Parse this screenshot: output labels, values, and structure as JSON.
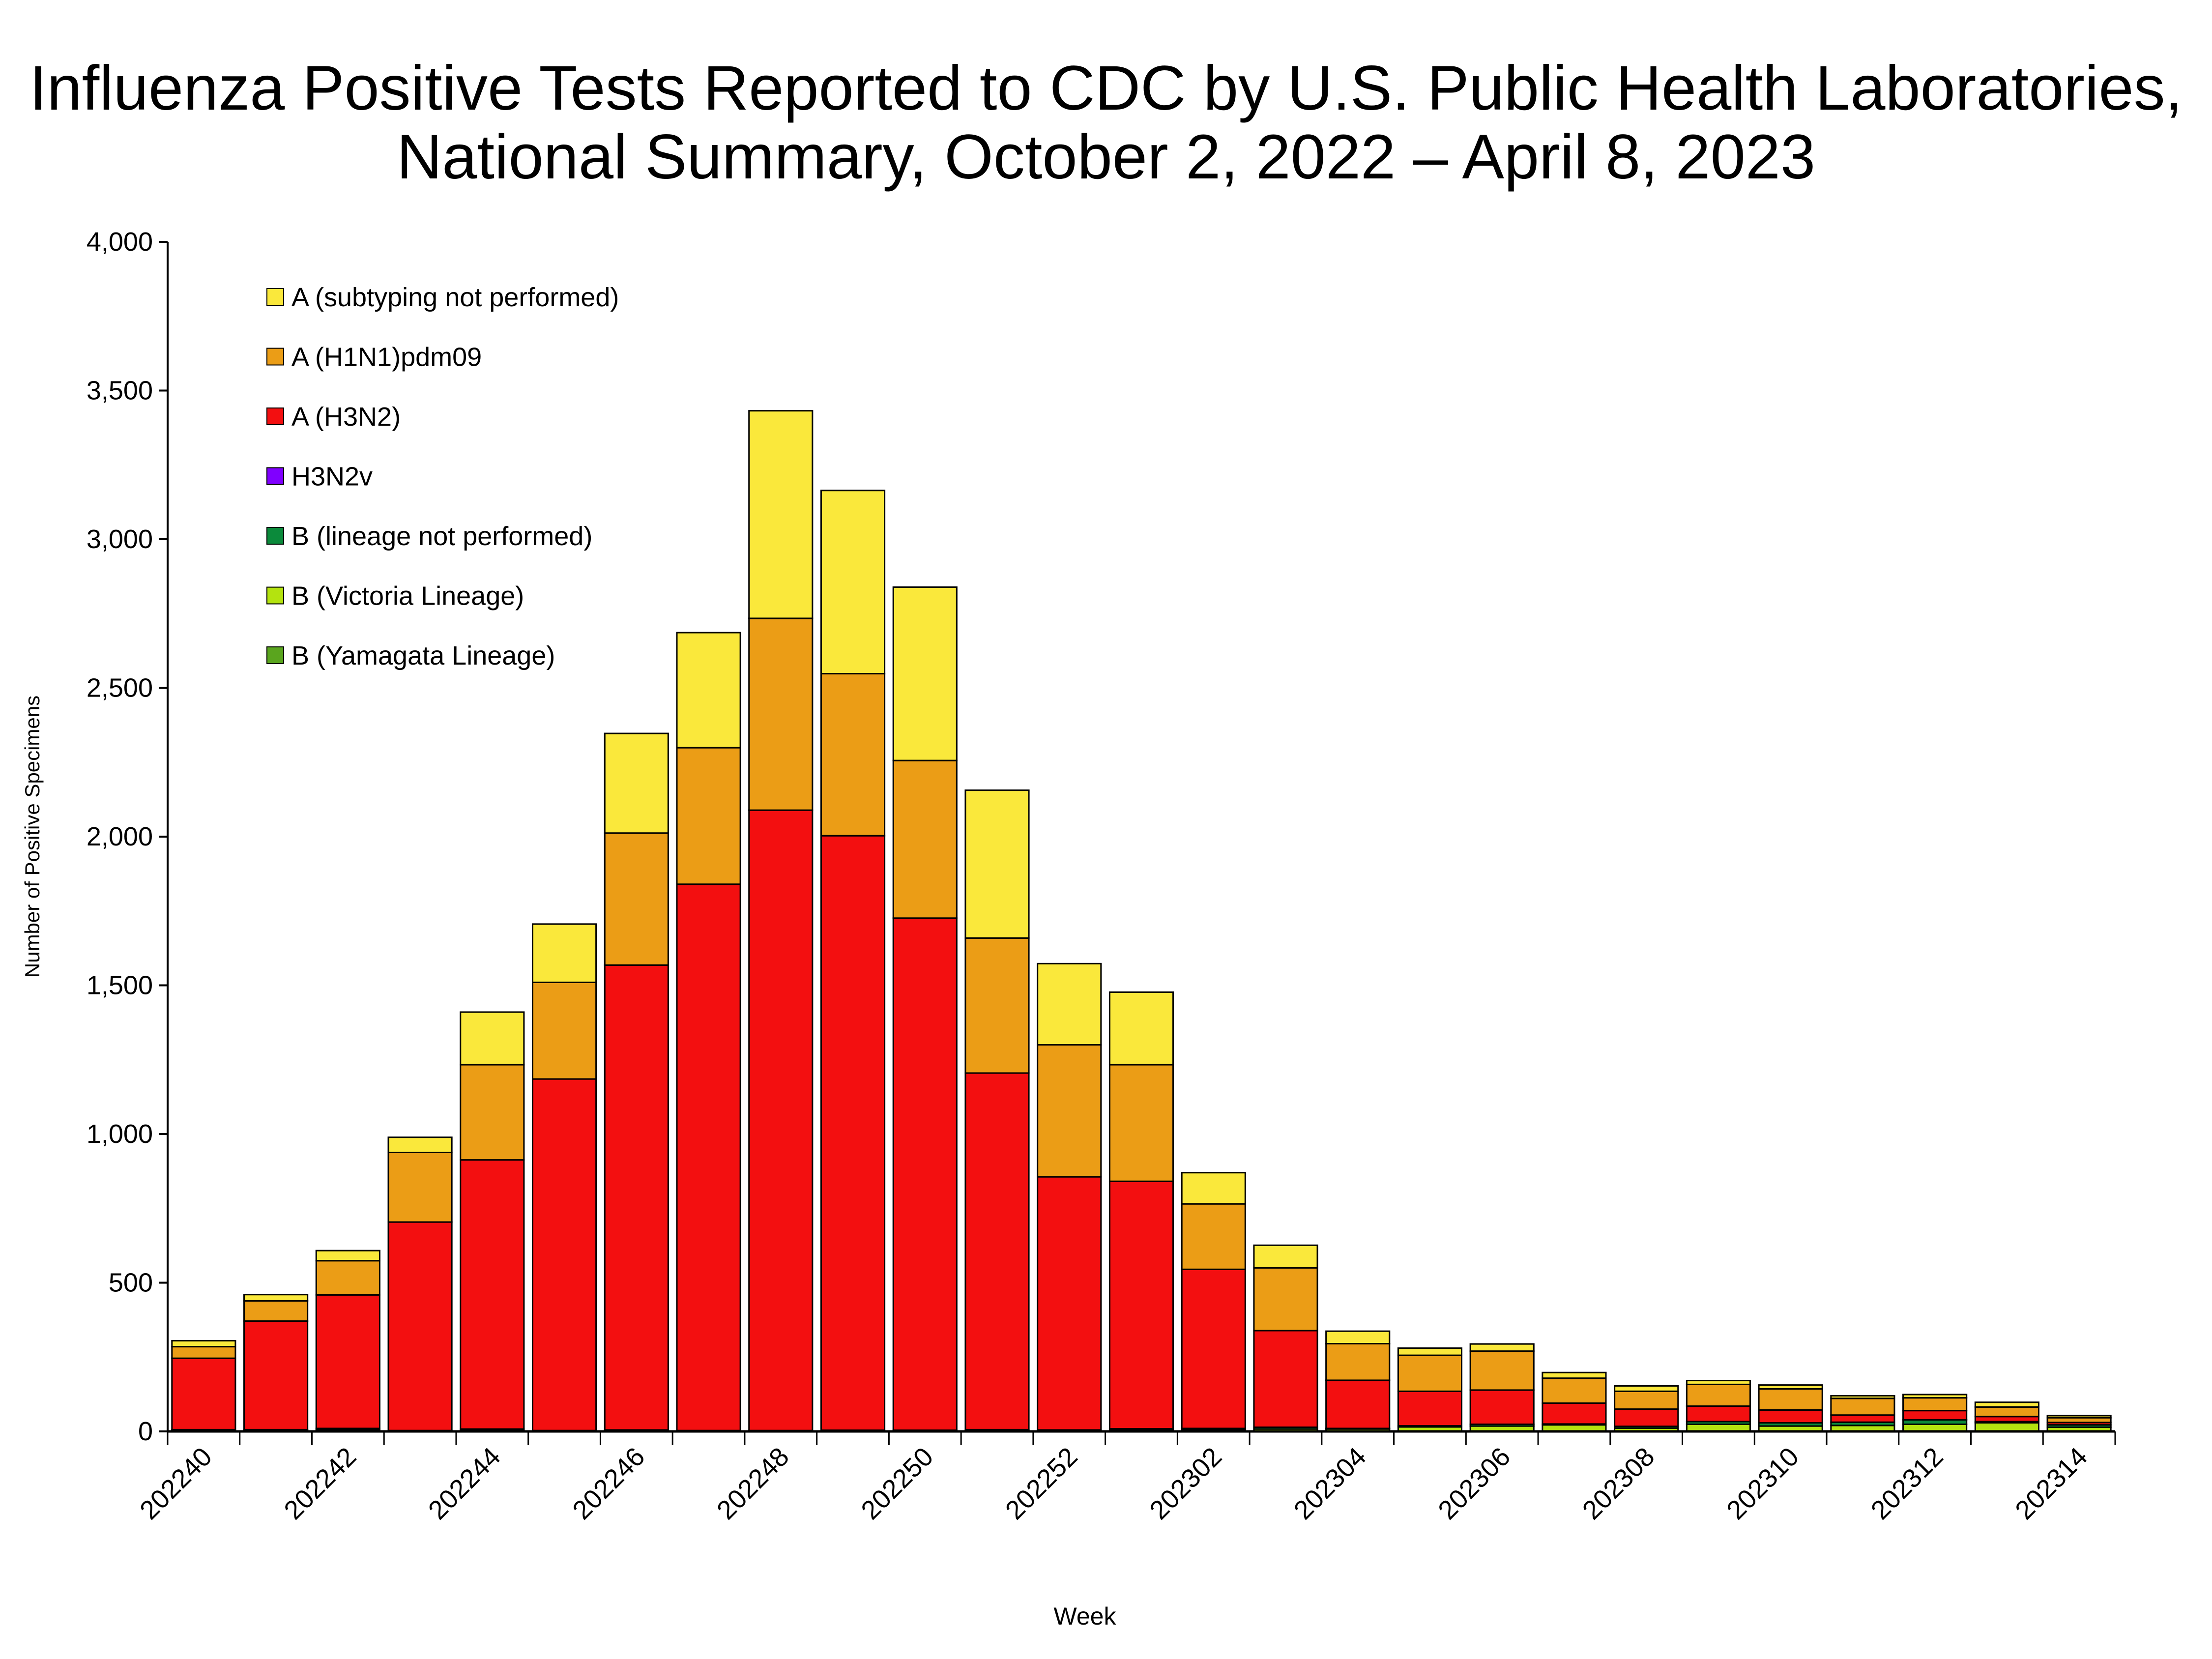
{
  "chart_data": {
    "type": "bar",
    "stacked": true,
    "title": [
      "Influenza Positive Tests Reported to CDC by U.S. Public Health Laboratories,",
      "National Summary, October 2, 2022 – April 8, 2023"
    ],
    "xlabel": "Week",
    "ylabel": "Number of Positive Specimens",
    "ylim": [
      0,
      4000
    ],
    "yticks": [
      0,
      500,
      1000,
      1500,
      2000,
      2500,
      3000,
      3500,
      4000
    ],
    "ytick_labels": [
      "0",
      "500",
      "1,000",
      "1,500",
      "2,000",
      "2,500",
      "3,000",
      "3,500",
      "4,000"
    ],
    "grid": false,
    "legend_position": "top-left",
    "categories": [
      "202240",
      "202241",
      "202242",
      "202243",
      "202244",
      "202245",
      "202246",
      "202247",
      "202248",
      "202249",
      "202250",
      "202251",
      "202252",
      "202301",
      "202302",
      "202303",
      "202304",
      "202305",
      "202306",
      "202307",
      "202308",
      "202309",
      "202310",
      "202311",
      "202312",
      "202313",
      "202314"
    ],
    "xtick_labels_every": 2,
    "series": [
      {
        "name": "B (Yamagata Lineage)",
        "color": "#5AA51E",
        "values": [
          0,
          0,
          0,
          0,
          0,
          0,
          0,
          0,
          0,
          0,
          0,
          0,
          0,
          0,
          0,
          0,
          0,
          0,
          0,
          0,
          0,
          0,
          0,
          0,
          0,
          0,
          0
        ]
      },
      {
        "name": "B (Victoria Lineage)",
        "color": "#B4E30F",
        "values": [
          4,
          4,
          5,
          2,
          5,
          2,
          3,
          2,
          2,
          2,
          2,
          3,
          3,
          6,
          6,
          8,
          8,
          15,
          18,
          22,
          11,
          24,
          18,
          20,
          24,
          29,
          14
        ]
      },
      {
        "name": "B (lineage not performed)",
        "color": "#0B8A3B",
        "values": [
          2,
          2,
          5,
          1,
          3,
          1,
          2,
          1,
          1,
          2,
          2,
          3,
          2,
          3,
          4,
          6,
          2,
          4,
          6,
          3,
          6,
          9,
          11,
          11,
          15,
          4,
          8
        ]
      },
      {
        "name": "H3N2v",
        "color": "#8000FF",
        "values": [
          0,
          0,
          0,
          0,
          0,
          0,
          0,
          0,
          0,
          0,
          0,
          0,
          0,
          0,
          0,
          0,
          0,
          0,
          0,
          0,
          0,
          0,
          0,
          0,
          0,
          0,
          0
        ]
      },
      {
        "name": "A (H3N2)",
        "color": "#F30F10",
        "values": [
          240,
          365,
          449,
          701,
          905,
          1182,
          1563,
          1837,
          2086,
          1999,
          1722,
          1199,
          851,
          832,
          535,
          325,
          162,
          116,
          115,
          70,
          58,
          52,
          43,
          24,
          31,
          17,
          8
        ]
      },
      {
        "name": "A (H1N1)pdm09",
        "color": "#EB9D16",
        "values": [
          39,
          68,
          115,
          234,
          320,
          325,
          444,
          459,
          645,
          545,
          530,
          454,
          444,
          392,
          220,
          211,
          123,
          121,
          131,
          84,
          60,
          73,
          71,
          56,
          43,
          32,
          16
        ]
      },
      {
        "name": "A (subtyping not performed)",
        "color": "#FAE83B",
        "values": [
          20,
          21,
          34,
          51,
          177,
          196,
          335,
          387,
          698,
          616,
          583,
          497,
          273,
          244,
          105,
          76,
          42,
          24,
          24,
          19,
          18,
          13,
          13,
          9,
          11,
          16,
          7
        ]
      }
    ],
    "legend_order": [
      "A (subtyping not performed)",
      "A (H1N1)pdm09",
      "A (H3N2)",
      "H3N2v",
      "B (lineage not performed)",
      "B (Victoria Lineage)",
      "B (Yamagata Lineage)"
    ]
  }
}
